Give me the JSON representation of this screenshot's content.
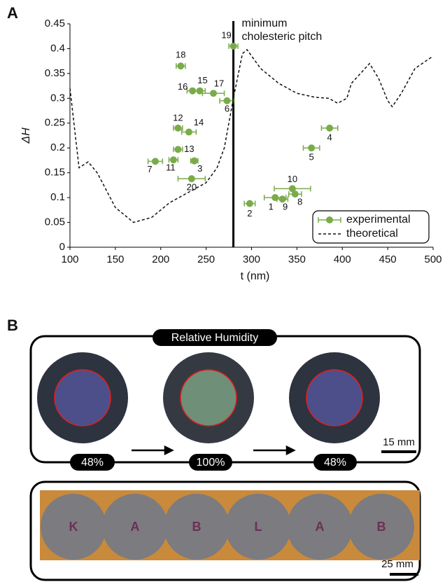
{
  "panel_labels": [
    "A",
    "B"
  ],
  "chart_data": {
    "type": "scatter",
    "xlabel": "t (nm)",
    "ylabel": "ΔH",
    "xlim": [
      100,
      500
    ],
    "ylim": [
      0,
      0.45
    ],
    "xticks": [
      100,
      150,
      200,
      250,
      300,
      350,
      400,
      450,
      500
    ],
    "yticks": [
      0,
      0.05,
      0.1,
      0.15,
      0.2,
      0.25,
      0.3,
      0.35,
      0.4,
      0.45
    ],
    "legend": "lower right",
    "annotation": {
      "x": 280,
      "text": [
        "minimum",
        "cholesteric pitch"
      ]
    },
    "series": [
      {
        "name": "experimental",
        "type": "scatter",
        "color": "#7aab4a",
        "labels": [
          "1",
          "2",
          "3",
          "4",
          "5",
          "6",
          "7",
          "8",
          "9",
          "10",
          "11",
          "12",
          "13",
          "14",
          "15",
          "16",
          "17",
          "18",
          "19",
          "20"
        ],
        "x": [
          326,
          298,
          237,
          386,
          366,
          273,
          194,
          348,
          334,
          345,
          214,
          219,
          219,
          231,
          243,
          235,
          258,
          222,
          280,
          234
        ],
        "values": [
          0.1,
          0.088,
          0.174,
          0.24,
          0.2,
          0.295,
          0.173,
          0.107,
          0.097,
          0.118,
          0.176,
          0.24,
          0.197,
          0.232,
          0.315,
          0.315,
          0.31,
          0.365,
          0.405,
          0.138
        ],
        "xerr": [
          12,
          6,
          4,
          9,
          9,
          8,
          8,
          7,
          6,
          20,
          5,
          5,
          5,
          8,
          6,
          6,
          12,
          5,
          5,
          15
        ]
      },
      {
        "name": "theoretical",
        "type": "line",
        "color": "#111111",
        "x": [
          100,
          110,
          120,
          130,
          150,
          170,
          190,
          210,
          230,
          250,
          262,
          270,
          280,
          290,
          295,
          310,
          330,
          350,
          370,
          385,
          395,
          405,
          410,
          420,
          430,
          440,
          450,
          455,
          465,
          480,
          500
        ],
        "values": [
          0.32,
          0.16,
          0.172,
          0.15,
          0.08,
          0.05,
          0.06,
          0.09,
          0.11,
          0.13,
          0.16,
          0.2,
          0.3,
          0.39,
          0.398,
          0.36,
          0.33,
          0.31,
          0.302,
          0.3,
          0.29,
          0.3,
          0.33,
          0.35,
          0.37,
          0.34,
          0.295,
          0.283,
          0.31,
          0.36,
          0.385
        ]
      }
    ]
  },
  "panel_b": {
    "title": "Relative Humidity",
    "steps": [
      "48%",
      "100%",
      "48%"
    ],
    "scale_bars": [
      "15 mm",
      "25 mm"
    ],
    "letters": [
      "K",
      "A",
      "B",
      "L",
      "A",
      "B"
    ]
  }
}
